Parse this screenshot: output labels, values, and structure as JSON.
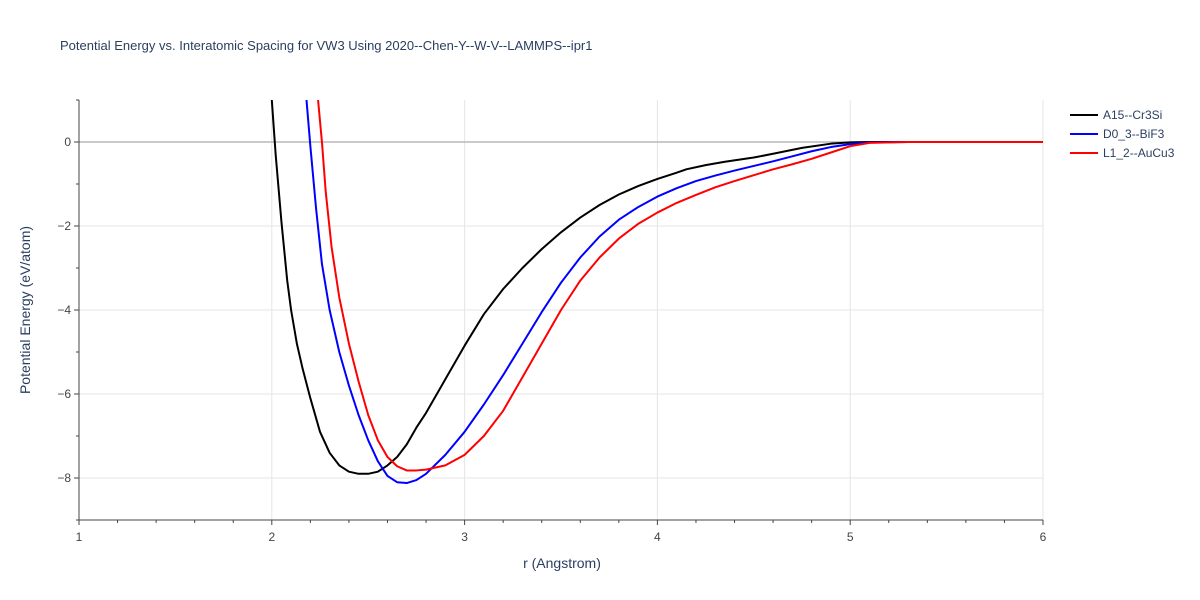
{
  "chart_data": {
    "type": "line",
    "title": "Potential Energy vs. Interatomic Spacing for VW3 Using 2020--Chen-Y--W-V--LAMMPS--ipr1",
    "xlabel": "r (Angstrom)",
    "ylabel": "Potential Energy (eV/atom)",
    "xlim": [
      1,
      6
    ],
    "ylim": [
      -9,
      1
    ],
    "xticks": [
      1,
      2,
      3,
      4,
      5,
      6
    ],
    "yticks": [
      -8,
      -6,
      -4,
      -2,
      0
    ],
    "grid": true,
    "legend_position": "top-right",
    "series": [
      {
        "name": "A15--Cr3Si",
        "color": "#000000",
        "x": [
          2.0,
          2.02,
          2.05,
          2.08,
          2.1,
          2.13,
          2.16,
          2.2,
          2.25,
          2.3,
          2.35,
          2.4,
          2.45,
          2.5,
          2.55,
          2.6,
          2.65,
          2.7,
          2.75,
          2.8,
          2.9,
          3.0,
          3.1,
          3.2,
          3.3,
          3.4,
          3.5,
          3.6,
          3.7,
          3.8,
          3.9,
          4.0,
          4.1,
          4.15,
          4.25,
          4.35,
          4.5,
          4.6,
          4.75,
          4.9,
          5.0,
          5.1,
          5.3,
          5.6,
          6.0
        ],
        "y": [
          1.0,
          -0.3,
          -1.9,
          -3.3,
          -4.0,
          -4.8,
          -5.4,
          -6.1,
          -6.9,
          -7.4,
          -7.7,
          -7.85,
          -7.9,
          -7.9,
          -7.85,
          -7.7,
          -7.5,
          -7.2,
          -6.8,
          -6.45,
          -5.65,
          -4.85,
          -4.1,
          -3.5,
          -3.0,
          -2.55,
          -2.15,
          -1.8,
          -1.5,
          -1.25,
          -1.05,
          -0.88,
          -0.73,
          -0.65,
          -0.55,
          -0.47,
          -0.37,
          -0.28,
          -0.14,
          -0.04,
          -0.01,
          0.0,
          0.0,
          0.0,
          0.0
        ]
      },
      {
        "name": "D0_3--BiF3",
        "color": "#0000ff",
        "x": [
          2.18,
          2.2,
          2.23,
          2.26,
          2.3,
          2.35,
          2.4,
          2.45,
          2.5,
          2.55,
          2.6,
          2.65,
          2.7,
          2.75,
          2.8,
          2.9,
          3.0,
          3.1,
          3.2,
          3.3,
          3.4,
          3.5,
          3.6,
          3.7,
          3.8,
          3.9,
          4.0,
          4.1,
          4.2,
          4.3,
          4.4,
          4.5,
          4.6,
          4.7,
          4.8,
          4.9,
          5.0,
          5.1,
          5.3,
          5.6,
          6.0
        ],
        "y": [
          1.0,
          -0.1,
          -1.6,
          -2.9,
          -4.0,
          -5.0,
          -5.8,
          -6.5,
          -7.1,
          -7.6,
          -7.95,
          -8.1,
          -8.12,
          -8.05,
          -7.9,
          -7.45,
          -6.9,
          -6.25,
          -5.55,
          -4.8,
          -4.05,
          -3.35,
          -2.75,
          -2.25,
          -1.85,
          -1.55,
          -1.3,
          -1.1,
          -0.93,
          -0.8,
          -0.68,
          -0.57,
          -0.46,
          -0.34,
          -0.22,
          -0.12,
          -0.05,
          -0.01,
          0.0,
          0.0,
          0.0
        ]
      },
      {
        "name": "L1_2--AuCu3",
        "color": "#ff0000",
        "x": [
          2.24,
          2.26,
          2.28,
          2.31,
          2.35,
          2.4,
          2.45,
          2.5,
          2.55,
          2.6,
          2.65,
          2.7,
          2.75,
          2.8,
          2.85,
          2.9,
          3.0,
          3.1,
          3.2,
          3.3,
          3.4,
          3.5,
          3.6,
          3.7,
          3.8,
          3.9,
          4.0,
          4.1,
          4.2,
          4.3,
          4.4,
          4.5,
          4.6,
          4.7,
          4.8,
          4.9,
          5.0,
          5.1,
          5.3,
          5.6,
          6.0
        ],
        "y": [
          1.0,
          0.0,
          -1.2,
          -2.5,
          -3.7,
          -4.8,
          -5.7,
          -6.5,
          -7.1,
          -7.5,
          -7.72,
          -7.82,
          -7.82,
          -7.8,
          -7.75,
          -7.7,
          -7.45,
          -7.0,
          -6.4,
          -5.6,
          -4.8,
          -4.0,
          -3.3,
          -2.75,
          -2.3,
          -1.95,
          -1.68,
          -1.45,
          -1.26,
          -1.08,
          -0.93,
          -0.79,
          -0.65,
          -0.53,
          -0.4,
          -0.25,
          -0.1,
          -0.02,
          0.0,
          0.0,
          0.0
        ]
      }
    ]
  }
}
